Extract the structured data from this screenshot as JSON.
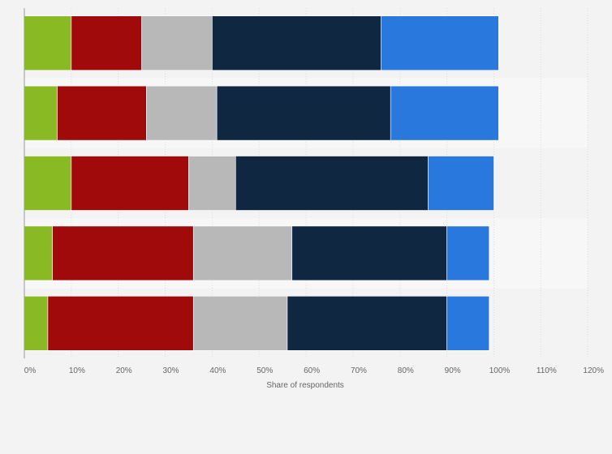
{
  "chart_data": {
    "type": "bar",
    "orientation": "horizontal",
    "stacked": true,
    "title": "",
    "xlabel": "Share of respondents",
    "ylabel": "",
    "xlim": [
      0,
      120
    ],
    "x_ticks": [
      0,
      10,
      20,
      30,
      40,
      50,
      60,
      70,
      80,
      90,
      100,
      110,
      120
    ],
    "tick_suffix": "%",
    "grid": true,
    "legend": "none",
    "categories": [
      "",
      "",
      "",
      "",
      ""
    ],
    "series": [
      {
        "color": "#8aba23",
        "values": [
          10,
          7,
          10,
          6,
          5
        ]
      },
      {
        "color": "#a10a0a",
        "values": [
          15,
          19,
          25,
          30,
          31
        ]
      },
      {
        "color": "#b8b8b8",
        "values": [
          15,
          15,
          10,
          21,
          20
        ]
      },
      {
        "color": "#0f2740",
        "values": [
          36,
          37,
          41,
          33,
          34
        ]
      },
      {
        "color": "#2878de",
        "values": [
          25,
          23,
          14,
          9,
          9
        ]
      }
    ]
  },
  "colors": {
    "background": "#f3f3f3",
    "band_alt": "#f7f7f7",
    "grid": "#dddddd",
    "axis": "#999999",
    "text": "#666666"
  }
}
